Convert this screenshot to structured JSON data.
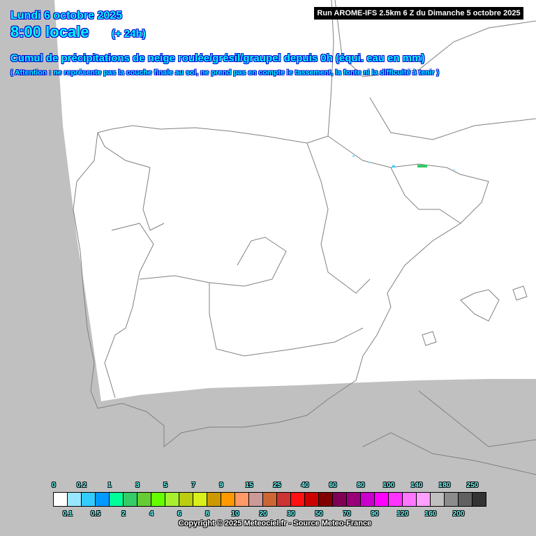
{
  "header": {
    "date": "Lundi 6 octobre 2025",
    "hour": "8:00 locale",
    "lead": "(+ 24h)",
    "title": "Cumul de précipitations de neige roulée/grésil/graupel depuis 0h (équi. eau en mm)",
    "note": "( Attention : ne représente pas la couche finale au sol, ne prend pas en compte le tassement, la fonte ni la difficulté à tenir )",
    "run": "Run AROME-IFS 2.5km 6 Z du Dimanche 5 octobre 2025"
  },
  "legend": {
    "values": [
      "0",
      "0.1",
      "0.2",
      "0.5",
      "1",
      "2",
      "3",
      "4",
      "5",
      "6",
      "7",
      "8",
      "9",
      "10",
      "15",
      "20",
      "25",
      "30",
      "40",
      "50",
      "60",
      "70",
      "80",
      "90",
      "100",
      "120",
      "140",
      "160",
      "180",
      "200",
      "250"
    ],
    "colors": [
      "#ffffff",
      "#99e6ff",
      "#33ccff",
      "#0099ff",
      "#00ff99",
      "#33cc66",
      "#66cc33",
      "#66ff00",
      "#a6f02f",
      "#bbcc11",
      "#d9f01a",
      "#cc9900",
      "#ff9900",
      "#ff9966",
      "#cc9999",
      "#cc6633",
      "#cc3333",
      "#ff1111",
      "#cc0000",
      "#800000",
      "#800055",
      "#990077",
      "#cc00cc",
      "#ff00ff",
      "#ff33ff",
      "#ff77ff",
      "#ffa0ff",
      "#c0c0c0",
      "#8c8c8c",
      "#606060",
      "#333333"
    ]
  },
  "copyright": "Copyright © 2025 Meteociel.fr - Source Meteo-France",
  "map": {
    "outside_domain_color": "#c0c0c0",
    "domain_color": "#ffffff",
    "border_color": "#808080"
  }
}
